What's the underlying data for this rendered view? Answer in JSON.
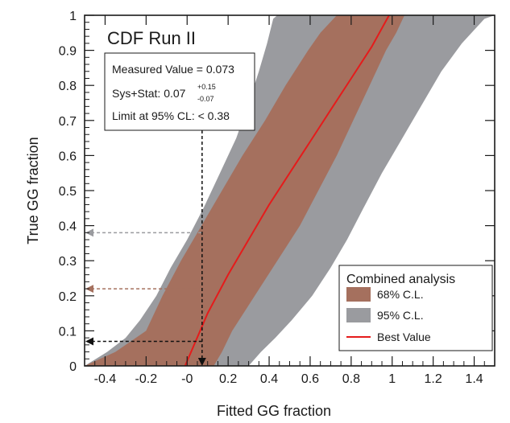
{
  "chart_data": {
    "type": "area",
    "title": "CDF Run II",
    "xlabel": "Fitted GG fraction",
    "ylabel": "True GG fraction",
    "xlim": [
      -0.5,
      1.5
    ],
    "ylim": [
      0,
      1
    ],
    "xticks": [
      -0.4,
      -0.2,
      0,
      0.2,
      0.4,
      0.6,
      0.8,
      1,
      1.2,
      1.4
    ],
    "xtick_labels": [
      "-0.4",
      "-0.2",
      "-0",
      "0.2",
      "0.4",
      "0.6",
      "0.8",
      "1",
      "1.2",
      "1.4"
    ],
    "yticks": [
      0,
      0.1,
      0.2,
      0.3,
      0.4,
      0.5,
      0.6,
      0.7,
      0.8,
      0.9,
      1
    ],
    "ytick_labels": [
      "0",
      "0.1",
      "0.2",
      "0.3",
      "0.4",
      "0.5",
      "0.6",
      "0.7",
      "0.8",
      "0.9",
      "1"
    ],
    "grid": false,
    "colors": {
      "band95": "#9a9b9f",
      "band68": "#a5705e",
      "best": "#e51b1b",
      "measured_arrow": "#111111",
      "arrow68": "#a5705e",
      "arrow95": "#9a9b9f"
    },
    "series": [
      {
        "name": "95% C.L.",
        "band_y": [
          0,
          0.04,
          0.08,
          0.13,
          0.2,
          0.28,
          0.36,
          0.45,
          0.55,
          0.65,
          0.75,
          0.84,
          0.92,
          0.99,
          1
        ],
        "band_lower_x": [
          0.3,
          0.36,
          0.43,
          0.51,
          0.61,
          0.7,
          0.78,
          0.86,
          0.95,
          1.05,
          1.15,
          1.24,
          1.34,
          1.45,
          1.5
        ],
        "band_upper_x": [
          -0.5,
          -0.39,
          -0.3,
          -0.23,
          -0.15,
          -0.08,
          0,
          0.08,
          0.16,
          0.24,
          0.3,
          0.35,
          0.39,
          0.42,
          0.44
        ]
      },
      {
        "name": "68% C.L.",
        "band_y": [
          0,
          0.04,
          0.1,
          0.2,
          0.3,
          0.4,
          0.5,
          0.6,
          0.7,
          0.8,
          0.9,
          0.95,
          1
        ],
        "band_lower_x": [
          0.13,
          0.17,
          0.22,
          0.33,
          0.44,
          0.55,
          0.64,
          0.73,
          0.81,
          0.89,
          0.97,
          1.02,
          1.06
        ],
        "band_upper_x": [
          -0.5,
          -0.35,
          -0.2,
          -0.12,
          -0.03,
          0.07,
          0.17,
          0.27,
          0.38,
          0.48,
          0.59,
          0.65,
          0.73
        ]
      },
      {
        "name": "Best Value",
        "x": [
          -0.01,
          0.1,
          0.2,
          0.3,
          0.4,
          0.5,
          0.6,
          0.7,
          0.8,
          0.9,
          0.985
        ],
        "y": [
          0,
          0.15,
          0.26,
          0.36,
          0.46,
          0.55,
          0.64,
          0.73,
          0.82,
          0.91,
          1
        ]
      }
    ],
    "measured_x": 0.073,
    "arrow_levels": {
      "measured": 0.07,
      "cl68": 0.22,
      "cl95": 0.38
    },
    "band_crossings": {
      "cl68_upper_x": 0.07,
      "cl95_upper_x": 0.07
    },
    "annotation": {
      "measured": "Measured Value = 0.073",
      "sys_prefix": "Sys+Stat: 0.07",
      "sys_plus": "+0.15",
      "sys_minus": "-0.07",
      "limit": "Limit at 95% CL: < 0.38"
    },
    "legend": {
      "title": "Combined analysis",
      "position": "bottom-right",
      "items": [
        "68% C.L.",
        "95% C.L.",
        "Best Value"
      ]
    }
  }
}
